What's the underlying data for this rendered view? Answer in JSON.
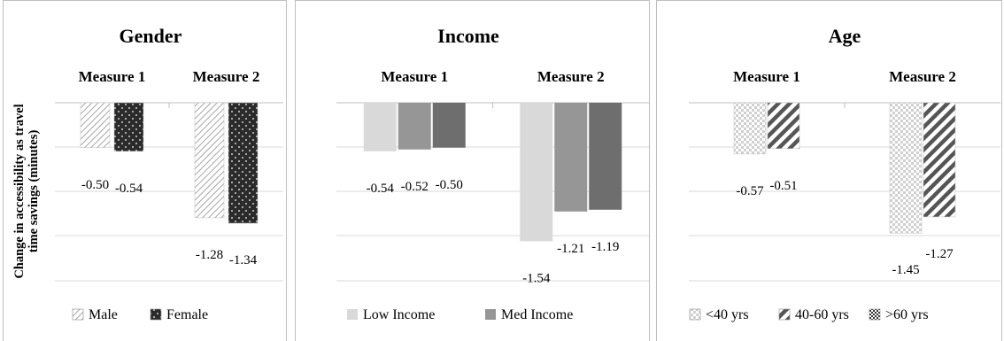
{
  "ylabel": "Change in accessibility as travel time savings (minutes)",
  "chart_data": [
    {
      "type": "bar",
      "title": "Gender",
      "categories": [
        "Measure 1",
        "Measure 2"
      ],
      "series": [
        {
          "name": "Male",
          "values": [
            -0.5,
            -1.28
          ],
          "labels": [
            "-0.50",
            "-1.28"
          ],
          "color": "#bfbfbf",
          "pattern": "diagonal-light"
        },
        {
          "name": "Female",
          "values": [
            -0.54,
            -1.34
          ],
          "labels": [
            "-0.54",
            "-1.34"
          ],
          "color": "#2b2b2b",
          "pattern": "dots"
        }
      ],
      "ylim": [
        -2,
        0
      ],
      "grid": true,
      "legend": "bottom"
    },
    {
      "type": "bar",
      "title": "Income",
      "categories": [
        "Measure 1",
        "Measure 2"
      ],
      "series": [
        {
          "name": "Low Income",
          "values": [
            -0.54,
            -1.54
          ],
          "labels": [
            "-0.54",
            "-1.54"
          ],
          "color": "#d9d9d9",
          "pattern": "solid"
        },
        {
          "name": "Med Income",
          "values": [
            -0.52,
            -1.21
          ],
          "labels": [
            "-0.52",
            "-1.21"
          ],
          "color": "#969696",
          "pattern": "solid"
        },
        {
          "name": "",
          "values": [
            -0.5,
            -1.19
          ],
          "labels": [
            "-0.50",
            "-1.19"
          ],
          "color": "#6e6e6e",
          "pattern": "solid"
        }
      ],
      "ylim": [
        -2,
        0
      ],
      "grid": true,
      "legend": "bottom"
    },
    {
      "type": "bar",
      "title": "Age",
      "categories": [
        "Measure 1",
        "Measure 2"
      ],
      "series": [
        {
          "name": "<40 yrs",
          "values": [
            -0.57,
            -1.45
          ],
          "labels": [
            "-0.57",
            "-1.45"
          ],
          "color": "#d9d9d9",
          "pattern": "checker"
        },
        {
          "name": "40-60 yrs",
          "values": [
            -0.51,
            -1.27
          ],
          "labels": [
            "-0.51",
            "-1.27"
          ],
          "color": "#555555",
          "pattern": "diagonal-wide"
        },
        {
          "name": ">60 yrs",
          "values": [
            null,
            null
          ],
          "labels": [
            "",
            ""
          ],
          "color": "#333333",
          "pattern": "checker-dark"
        }
      ],
      "ylim": [
        -2,
        0
      ],
      "grid": true,
      "legend": "bottom"
    }
  ]
}
